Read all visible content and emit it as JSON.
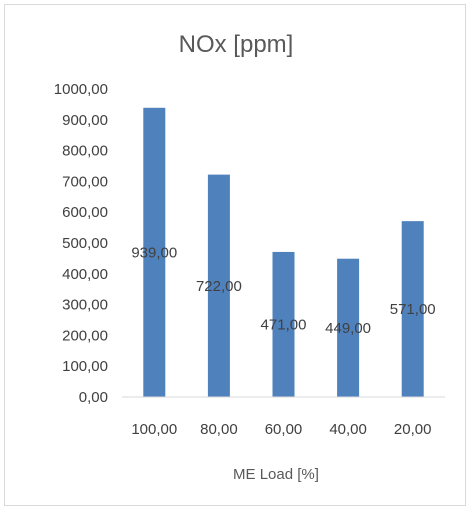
{
  "chart_data": {
    "type": "bar",
    "title": "NOx [ppm]",
    "xlabel": "ME Load [%]",
    "ylabel": "",
    "categories": [
      "100,00",
      "80,00",
      "60,00",
      "40,00",
      "20,00"
    ],
    "values": [
      939,
      722,
      471,
      449,
      571
    ],
    "value_labels": [
      "939,00",
      "722,00",
      "471,00",
      "449,00",
      "571,00"
    ],
    "ylim": [
      0,
      1000
    ],
    "y_ticks": [
      {
        "value": 0,
        "label": "0,00"
      },
      {
        "value": 100,
        "label": "100,00"
      },
      {
        "value": 200,
        "label": "200,00"
      },
      {
        "value": 300,
        "label": "300,00"
      },
      {
        "value": 400,
        "label": "400,00"
      },
      {
        "value": 500,
        "label": "500,00"
      },
      {
        "value": 600,
        "label": "600,00"
      },
      {
        "value": 700,
        "label": "700,00"
      },
      {
        "value": 800,
        "label": "800,00"
      },
      {
        "value": 900,
        "label": "900,00"
      },
      {
        "value": 1000,
        "label": "1000,00"
      }
    ],
    "grid": false,
    "legend": "none",
    "bar_color": "#4f81bd"
  }
}
